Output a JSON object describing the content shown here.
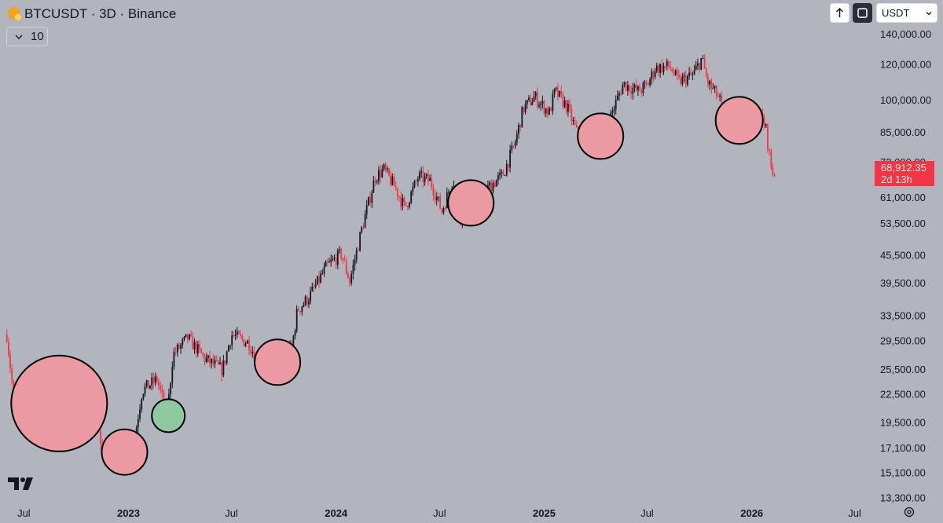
{
  "header": {
    "title": "BTCUSDT · 3D · Binance",
    "interval_value": "10",
    "currency": "USDT"
  },
  "price_tag": {
    "price": "68,912.35",
    "countdown": "2d 13h"
  },
  "colors": {
    "background": "#b2b5be",
    "up": "#131722",
    "down": "#f23645",
    "circle_red_fill": "#eb9aa4",
    "circle_green_fill": "#8fc9a0",
    "price_tag": "#f23645"
  },
  "chart_data": {
    "type": "candlestick",
    "y_scale": "log",
    "ylim": [
      13000,
      145000
    ],
    "y_ticks": [
      "140,000.00",
      "120,000.00",
      "100,000.00",
      "85,000.00",
      "73,000.00",
      "61,000.00",
      "53,500.00",
      "45,500.00",
      "39,500.00",
      "33,500.00",
      "29,500.00",
      "25,500.00",
      "22,500.00",
      "19,500.00",
      "17,100.00",
      "15,100.00",
      "13,300.00"
    ],
    "x_ticks": [
      "Jul",
      "2023",
      "Jul",
      "2024",
      "Jul",
      "2025",
      "Jul",
      "2026",
      "Jul"
    ],
    "x_ticks_bold": [
      "2023",
      "2024",
      "2025",
      "2026"
    ],
    "series_close": [
      [
        "2022-06-01",
        30500
      ],
      [
        "2022-06-15",
        21000
      ],
      [
        "2022-07-15",
        21500
      ],
      [
        "2022-08-15",
        23500
      ],
      [
        "2022-09-15",
        19600
      ],
      [
        "2022-10-15",
        19200
      ],
      [
        "2022-11-01",
        20500
      ],
      [
        "2022-11-20",
        16300
      ],
      [
        "2022-12-15",
        16800
      ],
      [
        "2023-01-10",
        17500
      ],
      [
        "2023-01-25",
        23000
      ],
      [
        "2023-02-20",
        24300
      ],
      [
        "2023-03-10",
        20200
      ],
      [
        "2023-03-20",
        27500
      ],
      [
        "2023-04-15",
        30000
      ],
      [
        "2023-05-15",
        27000
      ],
      [
        "2023-06-15",
        25500
      ],
      [
        "2023-07-01",
        30500
      ],
      [
        "2023-08-01",
        29200
      ],
      [
        "2023-08-20",
        26000
      ],
      [
        "2023-09-15",
        26500
      ],
      [
        "2023-10-15",
        28500
      ],
      [
        "2023-10-25",
        34500
      ],
      [
        "2023-11-15",
        37000
      ],
      [
        "2023-12-15",
        43000
      ],
      [
        "2024-01-10",
        46000
      ],
      [
        "2024-01-25",
        40000
      ],
      [
        "2024-02-15",
        52000
      ],
      [
        "2024-03-10",
        68000
      ],
      [
        "2024-03-25",
        70500
      ],
      [
        "2024-04-15",
        64000
      ],
      [
        "2024-05-01",
        58000
      ],
      [
        "2024-05-25",
        68000
      ],
      [
        "2024-06-15",
        66500
      ],
      [
        "2024-07-05",
        57000
      ],
      [
        "2024-07-25",
        67500
      ],
      [
        "2024-08-05",
        55000
      ],
      [
        "2024-08-25",
        64000
      ],
      [
        "2024-09-05",
        55000
      ],
      [
        "2024-09-25",
        64500
      ],
      [
        "2024-10-20",
        68500
      ],
      [
        "2024-11-10",
        80000
      ],
      [
        "2024-11-25",
        96000
      ],
      [
        "2024-12-15",
        102000
      ],
      [
        "2025-01-10",
        94000
      ],
      [
        "2025-01-20",
        105000
      ],
      [
        "2025-02-10",
        97000
      ],
      [
        "2025-03-01",
        84000
      ],
      [
        "2025-03-25",
        86000
      ],
      [
        "2025-04-10",
        78000
      ],
      [
        "2025-04-30",
        94000
      ],
      [
        "2025-05-20",
        109000
      ],
      [
        "2025-06-15",
        105000
      ],
      [
        "2025-07-01",
        108000
      ],
      [
        "2025-07-15",
        118000
      ],
      [
        "2025-08-10",
        119000
      ],
      [
        "2025-08-25",
        110000
      ],
      [
        "2025-09-20",
        114000
      ],
      [
        "2025-10-05",
        124000
      ],
      [
        "2025-10-15",
        110000
      ],
      [
        "2025-11-05",
        101000
      ],
      [
        "2025-11-20",
        86000
      ],
      [
        "2025-12-10",
        90000
      ],
      [
        "2025-12-25",
        88000
      ],
      [
        "2026-01-10",
        95000
      ],
      [
        "2026-01-25",
        88000
      ],
      [
        "2026-02-05",
        70000
      ],
      [
        "2026-02-10",
        68912
      ]
    ],
    "circles": [
      {
        "center": [
          "2022-09-01",
          21500
        ],
        "color": "red"
      },
      {
        "center": [
          "2022-12-25",
          16800
        ],
        "color": "red"
      },
      {
        "center": [
          "2023-03-12",
          20200
        ],
        "color": "green"
      },
      {
        "center": [
          "2023-09-20",
          26500
        ],
        "color": "red"
      },
      {
        "center": [
          "2024-08-25",
          59500
        ],
        "color": "red"
      },
      {
        "center": [
          "2025-04-10",
          83500
        ],
        "color": "red"
      },
      {
        "center": [
          "2025-12-10",
          90500
        ],
        "color": "red"
      }
    ]
  }
}
